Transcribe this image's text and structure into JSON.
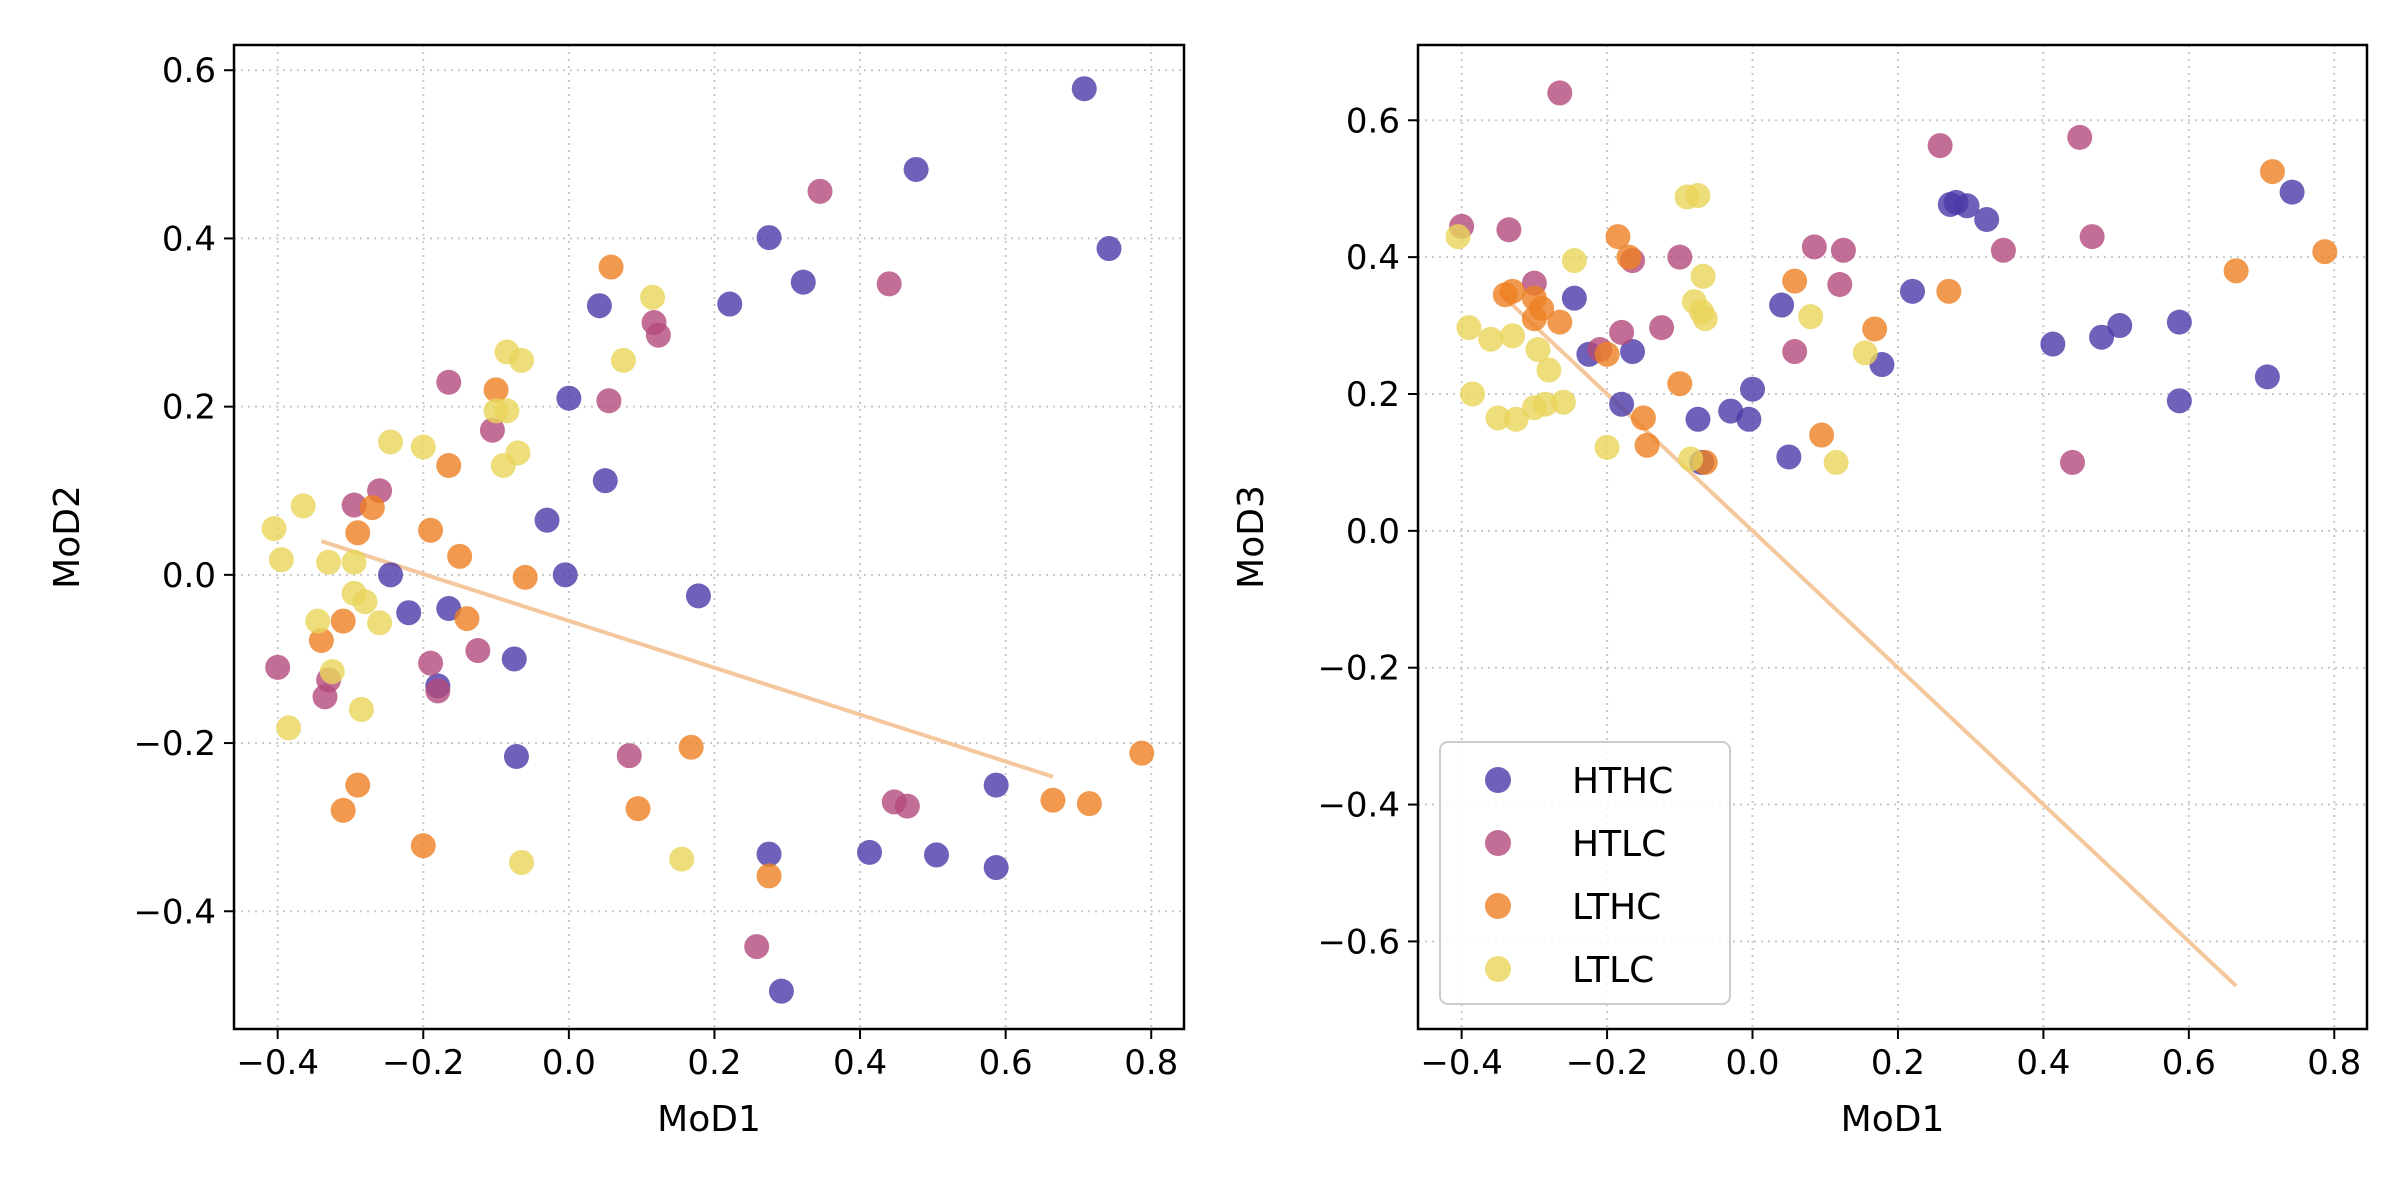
{
  "colors": {
    "HTHC": "#4b3aa8",
    "HTLC": "#b34a7c",
    "LTHC": "#ee7f22",
    "LTLC": "#e8d45a",
    "trend": "#f4c79d",
    "grid": "#c8c8c8"
  },
  "chart_data": [
    {
      "type": "scatter",
      "xlabel": "MoD1",
      "ylabel": "MoD2",
      "xlim": [
        -0.46,
        0.845
      ],
      "ylim": [
        -0.54,
        0.63
      ],
      "xticks": [
        -0.4,
        -0.2,
        0.0,
        0.2,
        0.4,
        0.6,
        0.8
      ],
      "yticks": [
        -0.4,
        -0.2,
        0.0,
        0.2,
        0.4,
        0.6
      ],
      "xtick_labels": [
        "−0.4",
        "−0.2",
        "0.0",
        "0.2",
        "0.4",
        "0.6",
        "0.8"
      ],
      "ytick_labels": [
        "−0.4",
        "−0.2",
        "0.0",
        "0.2",
        "0.4",
        "0.6"
      ],
      "grid": true,
      "legend": false,
      "trend_line": [
        [
          -0.34,
          0.04
        ],
        [
          0.665,
          -0.24
        ]
      ],
      "series": [
        {
          "name": "HTHC",
          "points": [
            [
              0.708,
              0.578
            ],
            [
              0.742,
              0.388
            ],
            [
              0.477,
              0.482
            ],
            [
              0.275,
              0.401
            ],
            [
              0.322,
              0.348
            ],
            [
              0.221,
              0.322
            ],
            [
              0.042,
              0.32
            ],
            [
              0.0,
              0.21
            ],
            [
              0.05,
              0.112
            ],
            [
              -0.03,
              0.065
            ],
            [
              -0.005,
              0.0
            ],
            [
              -0.245,
              0.0
            ],
            [
              -0.22,
              -0.045
            ],
            [
              -0.165,
              -0.04
            ],
            [
              -0.18,
              -0.132
            ],
            [
              -0.075,
              -0.1
            ],
            [
              0.178,
              -0.025
            ],
            [
              -0.072,
              -0.216
            ],
            [
              0.275,
              -0.332
            ],
            [
              0.413,
              -0.33
            ],
            [
              0.505,
              -0.333
            ],
            [
              0.587,
              -0.25
            ],
            [
              0.587,
              -0.348
            ],
            [
              0.292,
              -0.495
            ]
          ]
        },
        {
          "name": "HTLC",
          "points": [
            [
              0.345,
              0.456
            ],
            [
              0.44,
              0.346
            ],
            [
              0.117,
              0.3
            ],
            [
              0.123,
              0.285
            ],
            [
              0.055,
              0.207
            ],
            [
              -0.165,
              0.229
            ],
            [
              -0.105,
              0.172
            ],
            [
              -0.26,
              0.1
            ],
            [
              -0.295,
              0.083
            ],
            [
              -0.4,
              -0.11
            ],
            [
              -0.33,
              -0.125
            ],
            [
              -0.335,
              -0.145
            ],
            [
              -0.19,
              -0.105
            ],
            [
              -0.18,
              -0.138
            ],
            [
              -0.125,
              -0.09
            ],
            [
              0.083,
              -0.215
            ],
            [
              0.447,
              -0.27
            ],
            [
              0.465,
              -0.275
            ],
            [
              0.258,
              -0.442
            ]
          ]
        },
        {
          "name": "LTHC",
          "points": [
            [
              0.058,
              0.366
            ],
            [
              -0.1,
              0.22
            ],
            [
              -0.165,
              0.13
            ],
            [
              -0.27,
              0.08
            ],
            [
              -0.29,
              0.05
            ],
            [
              -0.19,
              0.053
            ],
            [
              -0.15,
              0.022
            ],
            [
              -0.06,
              -0.003
            ],
            [
              -0.31,
              -0.055
            ],
            [
              -0.34,
              -0.078
            ],
            [
              -0.14,
              -0.052
            ],
            [
              0.168,
              -0.205
            ],
            [
              0.095,
              -0.278
            ],
            [
              -0.29,
              -0.25
            ],
            [
              -0.31,
              -0.28
            ],
            [
              -0.2,
              -0.322
            ],
            [
              0.275,
              -0.358
            ],
            [
              0.665,
              -0.268
            ],
            [
              0.715,
              -0.272
            ],
            [
              0.787,
              -0.212
            ]
          ]
        },
        {
          "name": "LTLC",
          "points": [
            [
              0.115,
              0.33
            ],
            [
              0.075,
              0.255
            ],
            [
              -0.085,
              0.265
            ],
            [
              -0.065,
              0.255
            ],
            [
              -0.1,
              0.195
            ],
            [
              -0.085,
              0.195
            ],
            [
              -0.07,
              0.145
            ],
            [
              -0.09,
              0.13
            ],
            [
              -0.245,
              0.158
            ],
            [
              -0.2,
              0.152
            ],
            [
              -0.365,
              0.082
            ],
            [
              -0.405,
              0.055
            ],
            [
              -0.395,
              0.018
            ],
            [
              -0.33,
              0.015
            ],
            [
              -0.295,
              0.015
            ],
            [
              -0.295,
              -0.022
            ],
            [
              -0.28,
              -0.032
            ],
            [
              -0.26,
              -0.057
            ],
            [
              -0.345,
              -0.055
            ],
            [
              -0.325,
              -0.115
            ],
            [
              -0.285,
              -0.16
            ],
            [
              -0.385,
              -0.182
            ],
            [
              -0.065,
              -0.342
            ],
            [
              0.155,
              -0.338
            ]
          ]
        }
      ]
    },
    {
      "type": "scatter",
      "xlabel": "MoD1",
      "ylabel": "MoD3",
      "xlim": [
        -0.46,
        0.845
      ],
      "ylim": [
        -0.728,
        0.71
      ],
      "xticks": [
        -0.4,
        -0.2,
        0.0,
        0.2,
        0.4,
        0.6,
        0.8
      ],
      "yticks": [
        -0.6,
        -0.4,
        -0.2,
        0.0,
        0.2,
        0.4,
        0.6
      ],
      "xtick_labels": [
        "−0.4",
        "−0.2",
        "0.0",
        "0.2",
        "0.4",
        "0.6",
        "0.8"
      ],
      "ytick_labels": [
        "−0.6",
        "−0.4",
        "−0.2",
        "0.0",
        "0.2",
        "0.4",
        "0.6"
      ],
      "grid": true,
      "legend": "lower-left",
      "trend_line": [
        [
          -0.35,
          0.35
        ],
        [
          0.665,
          -0.665
        ]
      ],
      "series": [
        {
          "name": "HTHC",
          "points": [
            [
              0.742,
              0.495
            ],
            [
              0.272,
              0.477
            ],
            [
              0.28,
              0.48
            ],
            [
              0.295,
              0.475
            ],
            [
              0.322,
              0.455
            ],
            [
              0.22,
              0.35
            ],
            [
              0.04,
              0.33
            ],
            [
              -0.245,
              0.34
            ],
            [
              -0.225,
              0.258
            ],
            [
              -0.165,
              0.262
            ],
            [
              -0.18,
              0.185
            ],
            [
              0.0,
              0.207
            ],
            [
              -0.03,
              0.175
            ],
            [
              -0.005,
              0.163
            ],
            [
              -0.075,
              0.163
            ],
            [
              -0.07,
              0.1
            ],
            [
              0.05,
              0.108
            ],
            [
              0.178,
              0.243
            ],
            [
              0.413,
              0.273
            ],
            [
              0.48,
              0.283
            ],
            [
              0.505,
              0.3
            ],
            [
              0.587,
              0.305
            ],
            [
              0.587,
              0.19
            ],
            [
              0.708,
              0.225
            ]
          ]
        },
        {
          "name": "HTLC",
          "points": [
            [
              -0.265,
              0.64
            ],
            [
              0.258,
              0.563
            ],
            [
              0.45,
              0.575
            ],
            [
              -0.4,
              0.445
            ],
            [
              -0.335,
              0.44
            ],
            [
              0.467,
              0.43
            ],
            [
              0.345,
              0.41
            ],
            [
              0.085,
              0.415
            ],
            [
              0.125,
              0.41
            ],
            [
              -0.1,
              0.4
            ],
            [
              -0.165,
              0.395
            ],
            [
              -0.3,
              0.362
            ],
            [
              0.12,
              0.36
            ],
            [
              -0.18,
              0.29
            ],
            [
              -0.125,
              0.297
            ],
            [
              -0.21,
              0.265
            ],
            [
              0.058,
              0.262
            ],
            [
              0.44,
              0.1
            ]
          ]
        },
        {
          "name": "LTHC",
          "points": [
            [
              0.715,
              0.525
            ],
            [
              0.787,
              0.408
            ],
            [
              0.665,
              0.38
            ],
            [
              -0.185,
              0.43
            ],
            [
              -0.17,
              0.4
            ],
            [
              0.058,
              0.365
            ],
            [
              0.27,
              0.35
            ],
            [
              -0.33,
              0.35
            ],
            [
              -0.34,
              0.345
            ],
            [
              -0.3,
              0.34
            ],
            [
              -0.29,
              0.325
            ],
            [
              -0.3,
              0.31
            ],
            [
              -0.265,
              0.305
            ],
            [
              0.168,
              0.295
            ],
            [
              -0.2,
              0.258
            ],
            [
              -0.1,
              0.215
            ],
            [
              -0.15,
              0.165
            ],
            [
              -0.145,
              0.125
            ],
            [
              0.095,
              0.14
            ],
            [
              -0.065,
              0.1
            ]
          ]
        },
        {
          "name": "LTLC",
          "points": [
            [
              -0.09,
              0.488
            ],
            [
              -0.075,
              0.49
            ],
            [
              -0.405,
              0.43
            ],
            [
              -0.245,
              0.395
            ],
            [
              -0.068,
              0.372
            ],
            [
              -0.08,
              0.335
            ],
            [
              -0.07,
              0.32
            ],
            [
              -0.065,
              0.31
            ],
            [
              0.08,
              0.313
            ],
            [
              -0.39,
              0.297
            ],
            [
              -0.36,
              0.28
            ],
            [
              -0.33,
              0.285
            ],
            [
              -0.295,
              0.265
            ],
            [
              -0.28,
              0.235
            ],
            [
              0.155,
              0.26
            ],
            [
              -0.385,
              0.2
            ],
            [
              -0.35,
              0.165
            ],
            [
              -0.325,
              0.163
            ],
            [
              -0.3,
              0.18
            ],
            [
              -0.285,
              0.185
            ],
            [
              -0.26,
              0.188
            ],
            [
              -0.2,
              0.122
            ],
            [
              -0.085,
              0.105
            ],
            [
              0.115,
              0.1
            ]
          ]
        }
      ]
    }
  ]
}
